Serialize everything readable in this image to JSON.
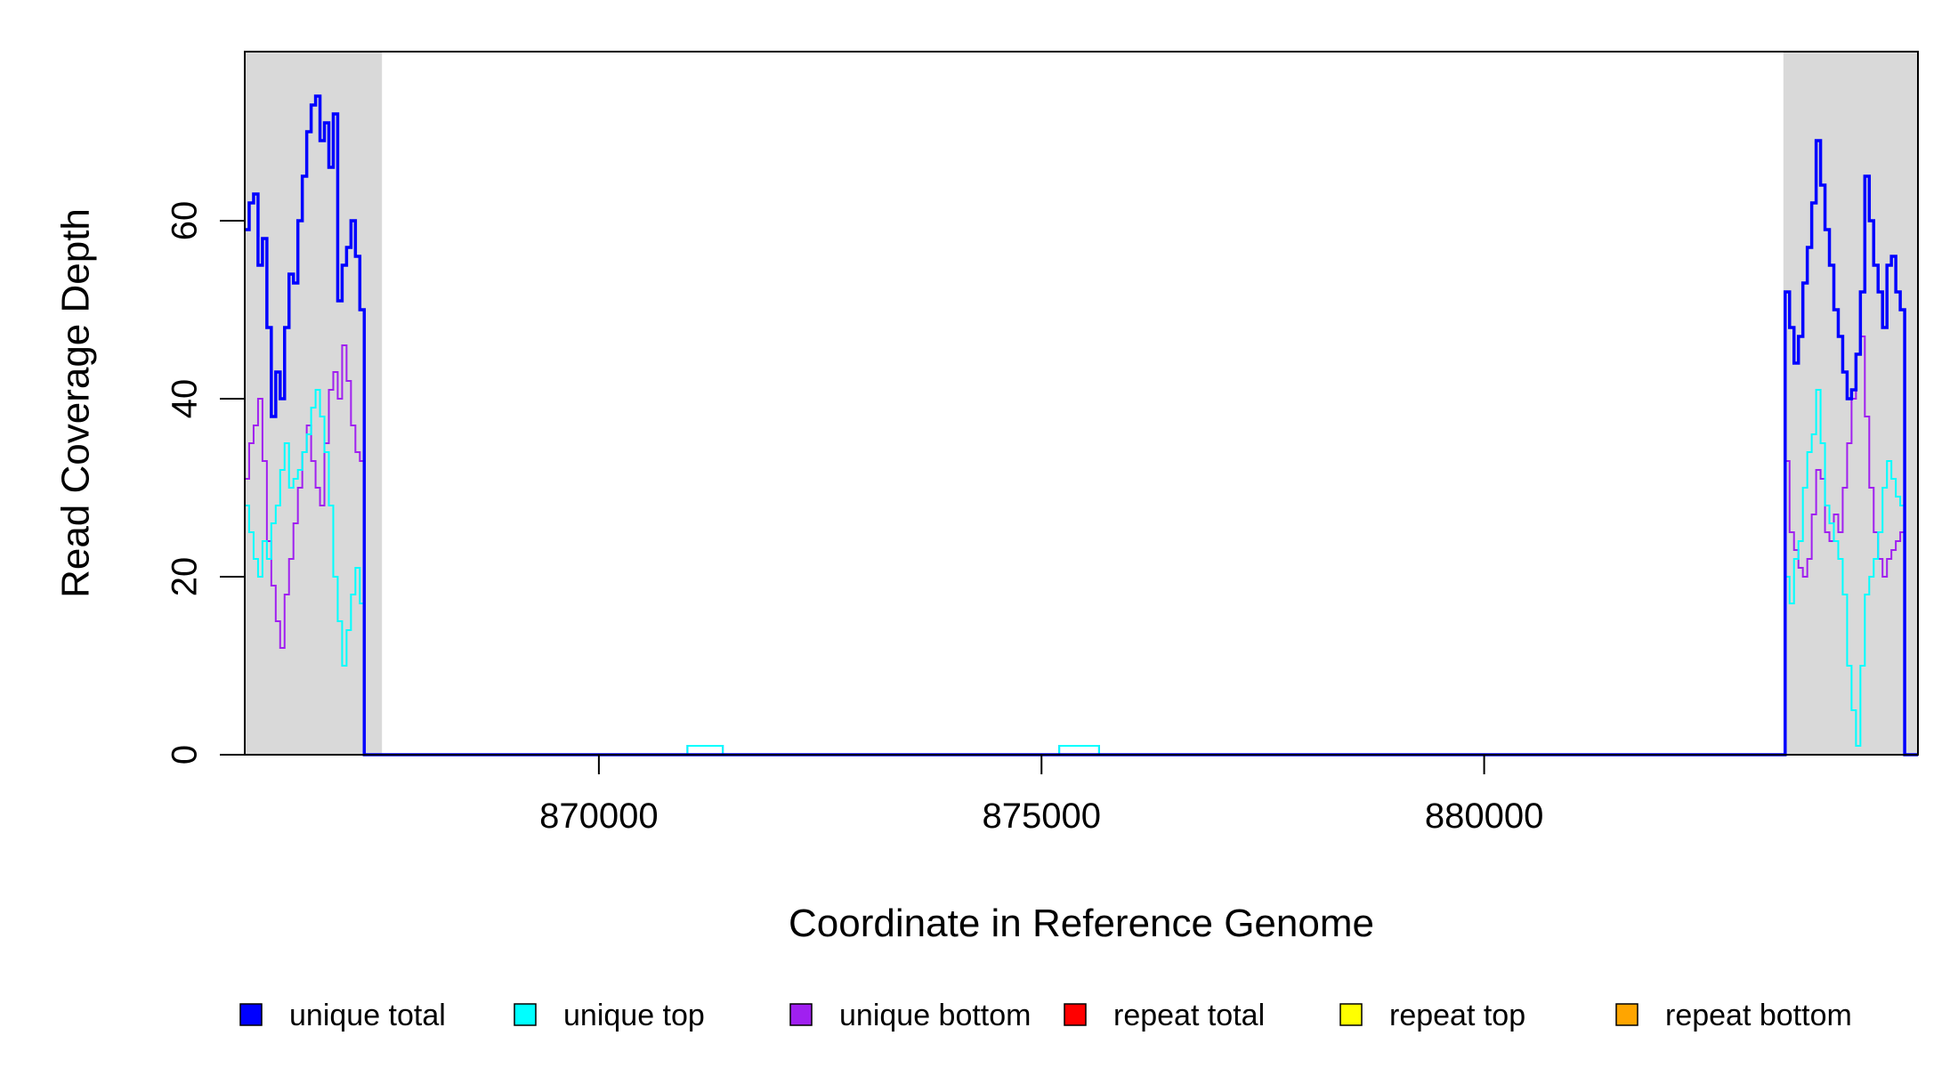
{
  "chart_data": {
    "type": "line",
    "xlabel": "Coordinate in Reference Genome",
    "ylabel": "Read Coverage Depth",
    "xlim": [
      866000,
      884900
    ],
    "ylim": [
      0,
      79
    ],
    "x_ticks": [
      870000,
      875000,
      880000
    ],
    "x_tick_labels": [
      "870000",
      "875000",
      "880000"
    ],
    "y_ticks": [
      0,
      20,
      40,
      60
    ],
    "y_tick_labels": [
      "0",
      "20",
      "40",
      "60"
    ],
    "shaded_regions": [
      {
        "x0": 866000,
        "x1": 867550,
        "color": "#d9d9d9"
      },
      {
        "x0": 883380,
        "x1": 884900,
        "color": "#d9d9d9"
      }
    ],
    "legend": [
      {
        "label": "unique total",
        "color": "#0000ff"
      },
      {
        "label": "unique top",
        "color": "#00ffff"
      },
      {
        "label": "unique bottom",
        "color": "#a020f0"
      },
      {
        "label": "repeat total",
        "color": "#ff0000"
      },
      {
        "label": "repeat top",
        "color": "#ffff00"
      },
      {
        "label": "repeat bottom",
        "color": "#ffa500"
      }
    ],
    "series": [
      {
        "name": "unique total",
        "color": "#0000ff",
        "x": [
          866000,
          866050,
          866100,
          866150,
          866200,
          866250,
          866300,
          866350,
          866400,
          866450,
          866500,
          866550,
          866600,
          866650,
          866700,
          866750,
          866800,
          866850,
          866900,
          866950,
          867000,
          867050,
          867100,
          867150,
          867200,
          867250,
          867300,
          867350,
          867400,
          867450,
          867500,
          867550,
          867600,
          867610,
          871000,
          871150,
          871400,
          875200,
          875400,
          875650,
          883380,
          883400,
          883450,
          883500,
          883550,
          883600,
          883650,
          883700,
          883750,
          883800,
          883850,
          883900,
          883950,
          884000,
          884050,
          884100,
          884150,
          884200,
          884250,
          884300,
          884350,
          884400,
          884450,
          884500,
          884550,
          884600,
          884650,
          884700,
          884750,
          884800,
          884850,
          884900
        ],
        "y": [
          59,
          62,
          63,
          55,
          58,
          48,
          38,
          43,
          40,
          48,
          54,
          53,
          60,
          65,
          70,
          73,
          74,
          69,
          71,
          66,
          72,
          51,
          55,
          57,
          60,
          56,
          50,
          0,
          0,
          0,
          0,
          0,
          0,
          0,
          0,
          0,
          0,
          0,
          0,
          0,
          0,
          52,
          48,
          44,
          47,
          53,
          57,
          62,
          69,
          64,
          59,
          55,
          50,
          47,
          43,
          40,
          41,
          45,
          52,
          65,
          60,
          55,
          52,
          48,
          55,
          56,
          52,
          50,
          0,
          0,
          0,
          0
        ]
      },
      {
        "name": "unique top",
        "color": "#00ffff",
        "x": [
          866000,
          866050,
          866100,
          866150,
          866200,
          866250,
          866300,
          866350,
          866400,
          866450,
          866500,
          866550,
          866600,
          866650,
          866700,
          866750,
          866800,
          866850,
          866900,
          866950,
          867000,
          867050,
          867100,
          867150,
          867200,
          867250,
          867300,
          867350,
          867400,
          867450,
          867500,
          867550,
          867600,
          867610,
          871000,
          871150,
          871400,
          875200,
          875400,
          875650,
          883380,
          883400,
          883450,
          883500,
          883550,
          883600,
          883650,
          883700,
          883750,
          883800,
          883850,
          883900,
          883950,
          884000,
          884050,
          884100,
          884150,
          884200,
          884250,
          884300,
          884350,
          884400,
          884450,
          884500,
          884550,
          884600,
          884650,
          884700,
          884750,
          884800,
          884850,
          884900
        ],
        "y": [
          28,
          25,
          22,
          20,
          24,
          22,
          26,
          28,
          32,
          35,
          30,
          31,
          32,
          34,
          36,
          39,
          41,
          38,
          34,
          28,
          20,
          15,
          10,
          14,
          18,
          21,
          17,
          0,
          0,
          0,
          0,
          0,
          0,
          0,
          1,
          1,
          0,
          1,
          1,
          0,
          0,
          20,
          17,
          22,
          24,
          30,
          34,
          36,
          41,
          35,
          28,
          26,
          24,
          22,
          18,
          10,
          5,
          1,
          10,
          18,
          20,
          22,
          25,
          30,
          33,
          31,
          29,
          28,
          0,
          0,
          0,
          0
        ]
      },
      {
        "name": "unique bottom",
        "color": "#a020f0",
        "x": [
          866000,
          866050,
          866100,
          866150,
          866200,
          866250,
          866300,
          866350,
          866400,
          866450,
          866500,
          866550,
          866600,
          866650,
          866700,
          866750,
          866800,
          866850,
          866900,
          866950,
          867000,
          867050,
          867100,
          867150,
          867200,
          867250,
          867300,
          867350,
          867400,
          867450,
          867500,
          867550,
          867600,
          867610,
          871000,
          871150,
          871400,
          875200,
          875400,
          875650,
          883380,
          883400,
          883450,
          883500,
          883550,
          883600,
          883650,
          883700,
          883750,
          883800,
          883850,
          883900,
          883950,
          884000,
          884050,
          884100,
          884150,
          884200,
          884250,
          884300,
          884350,
          884400,
          884450,
          884500,
          884550,
          884600,
          884650,
          884700,
          884750,
          884800,
          884850,
          884900
        ],
        "y": [
          31,
          35,
          37,
          40,
          33,
          24,
          19,
          15,
          12,
          18,
          22,
          26,
          30,
          34,
          37,
          33,
          30,
          28,
          35,
          41,
          43,
          40,
          46,
          42,
          37,
          34,
          33,
          0,
          0,
          0,
          0,
          0,
          0,
          0,
          1,
          1,
          0,
          1,
          1,
          0,
          0,
          33,
          25,
          23,
          21,
          20,
          22,
          27,
          32,
          31,
          25,
          24,
          27,
          25,
          30,
          35,
          40,
          45,
          47,
          38,
          30,
          25,
          22,
          20,
          22,
          23,
          24,
          25,
          0,
          0,
          0,
          0
        ]
      },
      {
        "name": "repeat total",
        "color": "#ff0000",
        "x": [
          866000,
          884900
        ],
        "y": [
          0,
          0
        ]
      },
      {
        "name": "repeat top",
        "color": "#ffff00",
        "x": [
          866000,
          884900
        ],
        "y": [
          0,
          0
        ]
      },
      {
        "name": "repeat bottom",
        "color": "#ffa500",
        "x": [
          866000,
          884900
        ],
        "y": [
          0,
          0
        ]
      }
    ]
  }
}
